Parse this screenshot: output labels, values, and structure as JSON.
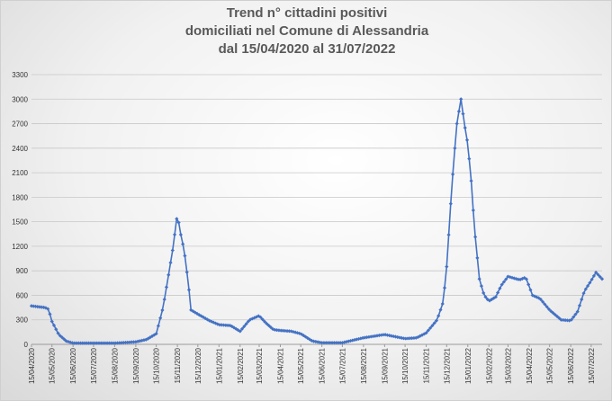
{
  "chart_data": {
    "type": "line",
    "title": [
      "Trend n° cittadini positivi",
      "domiciliati nel Comune di Alessandria",
      "dal 15/04/2020 al 31/07/2022"
    ],
    "xlabel": "",
    "ylabel": "",
    "ylim": [
      0,
      3300
    ],
    "yticks": [
      "0",
      "300",
      "600",
      "900",
      "1200",
      "1500",
      "1800",
      "2100",
      "2400",
      "2700",
      "3000",
      "3300"
    ],
    "x_start": "15/04/2020",
    "x_end": "31/07/2022",
    "xticks": [
      "15/04/2020",
      "15/05/2020",
      "15/06/2020",
      "15/07/2020",
      "15/08/2020",
      "15/09/2020",
      "15/10/2020",
      "15/11/2020",
      "15/12/2020",
      "15/01/2021",
      "15/02/2021",
      "15/03/2021",
      "15/04/2021",
      "15/05/2021",
      "15/06/2021",
      "15/07/2021",
      "15/08/2021",
      "15/09/2021",
      "15/10/2021",
      "15/11/2021",
      "15/12/2021",
      "15/01/2022",
      "15/02/2022",
      "15/03/2022",
      "15/04/2022",
      "15/05/2022",
      "15/06/2022",
      "15/07/2022"
    ],
    "grid": true,
    "legend": "none",
    "color": "#4472c4",
    "series": [
      {
        "x": [
          "15/04/2020",
          "25/04/2020",
          "05/05/2020",
          "10/05/2020",
          "15/05/2020",
          "25/05/2020",
          "05/06/2020",
          "15/06/2020",
          "15/07/2020",
          "15/08/2020",
          "15/09/2020",
          "01/10/2020",
          "15/10/2020",
          "25/10/2020",
          "01/11/2020",
          "08/11/2020",
          "15/11/2020",
          "19/11/2020",
          "25/11/2020",
          "01/12/2020",
          "05/12/2020",
          "15/12/2020",
          "01/01/2021",
          "15/01/2021",
          "01/02/2021",
          "15/02/2021",
          "01/03/2021",
          "15/03/2021",
          "25/03/2021",
          "05/04/2021",
          "15/04/2021",
          "01/05/2021",
          "15/05/2021",
          "01/06/2021",
          "15/06/2021",
          "15/07/2021",
          "15/08/2021",
          "15/09/2021",
          "15/10/2021",
          "01/11/2021",
          "15/11/2021",
          "01/12/2021",
          "10/12/2021",
          "15/12/2021",
          "20/12/2021",
          "25/12/2021",
          "30/12/2021",
          "05/01/2022",
          "10/01/2022",
          "15/01/2022",
          "20/01/2022",
          "25/01/2022",
          "01/02/2022",
          "08/02/2022",
          "15/02/2022",
          "25/02/2022",
          "05/03/2022",
          "15/03/2022",
          "01/04/2022",
          "10/04/2022",
          "20/04/2022",
          "01/05/2022",
          "15/05/2022",
          "01/06/2022",
          "15/06/2022",
          "25/06/2022",
          "05/07/2022",
          "15/07/2022",
          "22/07/2022",
          "31/07/2022"
        ],
        "y": [
          470,
          460,
          450,
          430,
          280,
          120,
          40,
          15,
          15,
          15,
          30,
          60,
          130,
          450,
          800,
          1150,
          1600,
          1380,
          1150,
          750,
          420,
          370,
          290,
          240,
          230,
          160,
          300,
          350,
          260,
          180,
          170,
          160,
          130,
          40,
          20,
          20,
          80,
          120,
          70,
          80,
          140,
          300,
          520,
          950,
          1600,
          2200,
          2700,
          3000,
          2700,
          2450,
          2000,
          1400,
          800,
          600,
          530,
          580,
          720,
          830,
          790,
          820,
          600,
          560,
          420,
          300,
          290,
          400,
          650,
          780,
          880,
          800
        ]
      }
    ]
  }
}
